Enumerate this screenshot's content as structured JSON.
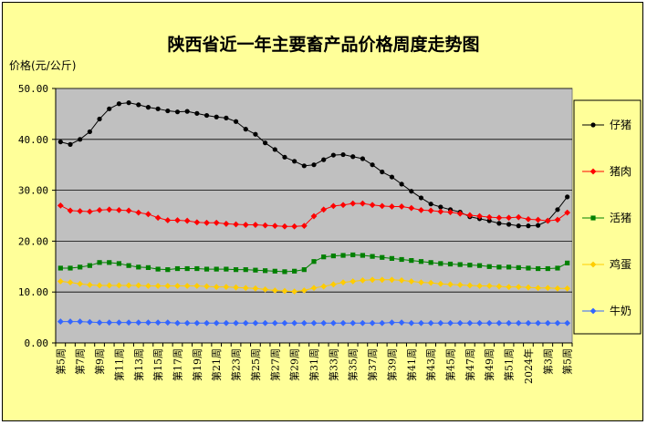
{
  "chart_data": {
    "type": "line",
    "title": "陕西省近一年主要畜产品价格周度走势图",
    "ylabel": "价格(元/公斤)",
    "ylim": [
      0,
      50
    ],
    "yticks": [
      "0.00",
      "10.00",
      "20.00",
      "30.00",
      "40.00",
      "50.00"
    ],
    "grid": true,
    "legend_position": "right",
    "x": [
      "第5周",
      "第6周",
      "第7周",
      "第8周",
      "第9周",
      "第10周",
      "第11周",
      "第12周",
      "第13周",
      "第14周",
      "第15周",
      "第16周",
      "第17周",
      "第18周",
      "第19周",
      "第20周",
      "第21周",
      "第22周",
      "第23周",
      "第24周",
      "第25周",
      "第26周",
      "第27周",
      "第28周",
      "第29周",
      "第30周",
      "第31周",
      "第32周",
      "第33周",
      "第34周",
      "第35周",
      "第36周",
      "第37周",
      "第38周",
      "第39周",
      "第40周",
      "第41周",
      "第42周",
      "第43周",
      "第44周",
      "第45周",
      "第46周",
      "第47周",
      "第48周",
      "第49周",
      "第50周",
      "第51周",
      "第52周",
      "2024年",
      "第2周",
      "第3周",
      "第4周",
      "第5周"
    ],
    "xticks_shown": [
      "第5周",
      "第7周",
      "第9周",
      "第11周",
      "第13周",
      "第15周",
      "第17周",
      "第19周",
      "第21周",
      "第23周",
      "第25周",
      "第27周",
      "第29周",
      "第31周",
      "第33周",
      "第35周",
      "第37周",
      "第39周",
      "第41周",
      "第43周",
      "第45周",
      "第47周",
      "第49周",
      "第51周",
      "2024年",
      "第3周",
      "第5周"
    ],
    "series": [
      {
        "name": "仔猪",
        "color": "#000000",
        "marker": "circle",
        "values": [
          39.5,
          39.0,
          40.0,
          41.5,
          44.0,
          46.0,
          47.0,
          47.2,
          46.8,
          46.3,
          46.0,
          45.6,
          45.4,
          45.5,
          45.1,
          44.7,
          44.4,
          44.2,
          43.5,
          42.0,
          41.0,
          39.3,
          38.0,
          36.5,
          35.7,
          34.8,
          35.0,
          36.0,
          36.9,
          37.0,
          36.6,
          36.2,
          35.0,
          33.6,
          32.6,
          31.2,
          29.8,
          28.5,
          27.3,
          26.7,
          26.2,
          25.7,
          24.8,
          24.4,
          24.0,
          23.5,
          23.3,
          23.0,
          23.0,
          23.1,
          24.0,
          26.2,
          28.7
        ]
      },
      {
        "name": "猪肉",
        "color": "#ff0000",
        "marker": "diamond",
        "values": [
          27.0,
          26.0,
          25.9,
          25.8,
          26.1,
          26.2,
          26.1,
          26.0,
          25.6,
          25.3,
          24.6,
          24.1,
          24.1,
          24.0,
          23.7,
          23.6,
          23.6,
          23.4,
          23.3,
          23.2,
          23.2,
          23.1,
          23.0,
          22.9,
          22.9,
          23.0,
          24.9,
          26.2,
          26.9,
          27.1,
          27.4,
          27.4,
          27.1,
          26.9,
          26.8,
          26.8,
          26.5,
          26.1,
          26.0,
          25.8,
          25.7,
          25.4,
          25.1,
          24.9,
          24.7,
          24.6,
          24.6,
          24.7,
          24.3,
          24.2,
          24.0,
          24.2,
          25.6
        ]
      },
      {
        "name": "活猪",
        "color": "#008000",
        "marker": "square",
        "values": [
          14.7,
          14.7,
          14.9,
          15.2,
          15.8,
          15.8,
          15.6,
          15.2,
          14.9,
          14.8,
          14.5,
          14.4,
          14.6,
          14.6,
          14.6,
          14.5,
          14.5,
          14.5,
          14.4,
          14.4,
          14.3,
          14.2,
          14.1,
          14.0,
          14.1,
          14.4,
          16.0,
          16.9,
          17.1,
          17.2,
          17.3,
          17.2,
          17.0,
          16.8,
          16.6,
          16.4,
          16.2,
          16.0,
          15.8,
          15.6,
          15.5,
          15.4,
          15.3,
          15.2,
          15.0,
          14.9,
          14.9,
          14.8,
          14.7,
          14.6,
          14.6,
          14.7,
          15.7
        ]
      },
      {
        "name": "鸡蛋",
        "color": "#ffcc00",
        "marker": "diamond",
        "values": [
          12.1,
          11.9,
          11.6,
          11.4,
          11.3,
          11.3,
          11.3,
          11.3,
          11.3,
          11.2,
          11.2,
          11.2,
          11.2,
          11.2,
          11.2,
          11.1,
          11.0,
          11.0,
          10.9,
          10.8,
          10.7,
          10.5,
          10.3,
          10.2,
          10.1,
          10.3,
          10.8,
          11.1,
          11.5,
          11.9,
          12.1,
          12.3,
          12.4,
          12.4,
          12.4,
          12.3,
          12.1,
          11.9,
          11.8,
          11.6,
          11.5,
          11.4,
          11.3,
          11.2,
          11.2,
          11.1,
          11.0,
          11.0,
          10.9,
          10.8,
          10.8,
          10.7,
          10.7
        ]
      },
      {
        "name": "牛奶",
        "color": "#3366ff",
        "marker": "diamond",
        "values": [
          4.2,
          4.2,
          4.2,
          4.1,
          4.0,
          4.0,
          4.0,
          4.0,
          4.0,
          4.0,
          4.0,
          4.0,
          3.9,
          3.9,
          3.9,
          3.9,
          3.9,
          3.9,
          3.9,
          3.9,
          3.9,
          3.9,
          3.9,
          3.9,
          3.9,
          3.9,
          3.9,
          3.9,
          3.9,
          3.9,
          3.9,
          3.9,
          3.9,
          3.9,
          4.0,
          4.0,
          3.9,
          3.9,
          3.9,
          3.9,
          3.9,
          3.9,
          3.9,
          3.9,
          3.9,
          3.9,
          3.9,
          3.9,
          3.9,
          3.9,
          3.9,
          3.9,
          3.9
        ]
      }
    ]
  }
}
